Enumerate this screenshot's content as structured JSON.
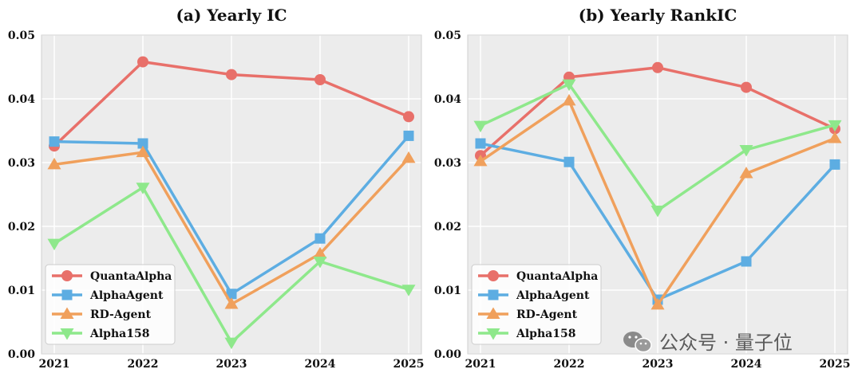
{
  "chart_data": [
    {
      "type": "line",
      "title": "(a) Yearly IC",
      "xlabel": "",
      "ylabel": "",
      "categories": [
        "2021",
        "2022",
        "2023",
        "2024",
        "2025"
      ],
      "ylim": [
        0,
        0.05
      ],
      "yticks": [
        "0.00",
        "0.01",
        "0.02",
        "0.03",
        "0.04",
        "0.05"
      ],
      "grid": true,
      "legend_position": "bottom-left",
      "series": [
        {
          "name": "QuantaAlpha",
          "marker": "circle",
          "color": "#E8706A",
          "values": [
            0.0326,
            0.0458,
            0.0438,
            0.043,
            0.0372
          ]
        },
        {
          "name": "AlphaAgent",
          "marker": "square",
          "color": "#5DADE2",
          "values": [
            0.0333,
            0.033,
            0.0094,
            0.0181,
            0.0342
          ]
        },
        {
          "name": "RD-Agent",
          "marker": "triangle-up",
          "color": "#F0A05C",
          "values": [
            0.0297,
            0.0316,
            0.0078,
            0.0157,
            0.0307
          ]
        },
        {
          "name": "Alpha158",
          "marker": "triangle-down",
          "color": "#8EE88B",
          "values": [
            0.0173,
            0.0261,
            0.0018,
            0.0145,
            0.0101
          ]
        }
      ]
    },
    {
      "type": "line",
      "title": "(b) Yearly RankIC",
      "xlabel": "",
      "ylabel": "",
      "categories": [
        "2021",
        "2022",
        "2023",
        "2024",
        "2025"
      ],
      "ylim": [
        0,
        0.05
      ],
      "yticks": [
        "0.00",
        "0.01",
        "0.02",
        "0.03",
        "0.04",
        "0.05"
      ],
      "grid": true,
      "legend_position": "bottom-left",
      "series": [
        {
          "name": "QuantaAlpha",
          "marker": "circle",
          "color": "#E8706A",
          "values": [
            0.0311,
            0.0434,
            0.0449,
            0.0418,
            0.0353
          ]
        },
        {
          "name": "AlphaAgent",
          "marker": "square",
          "color": "#5DADE2",
          "values": [
            0.033,
            0.0301,
            0.0085,
            0.0145,
            0.0297
          ]
        },
        {
          "name": "RD-Agent",
          "marker": "triangle-up",
          "color": "#F0A05C",
          "values": [
            0.0302,
            0.0397,
            0.0077,
            0.0283,
            0.0338
          ]
        },
        {
          "name": "Alpha158",
          "marker": "triangle-down",
          "color": "#8EE88B",
          "values": [
            0.0358,
            0.0423,
            0.0225,
            0.032,
            0.0359
          ]
        }
      ]
    }
  ],
  "watermark": {
    "text": "公众号 · 量子位",
    "icon": "wechat-icon"
  }
}
